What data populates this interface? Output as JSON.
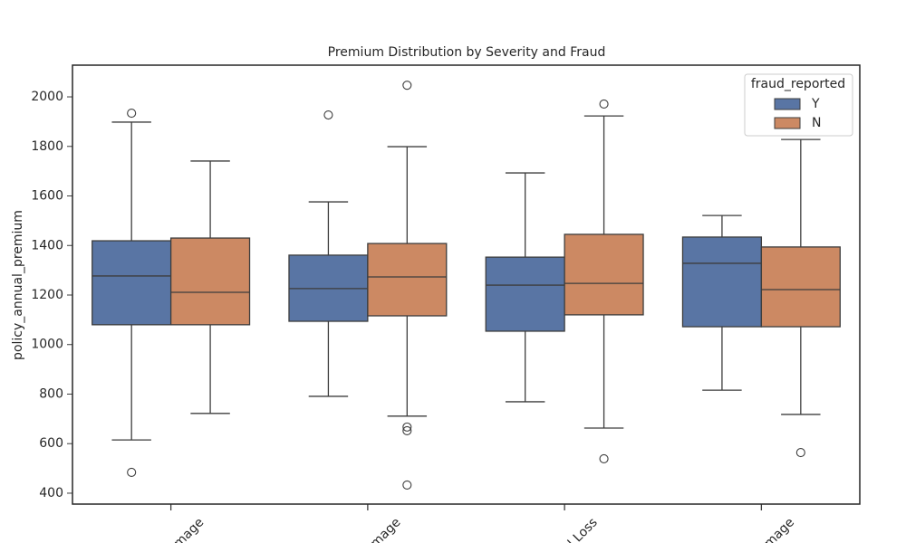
{
  "chart_data": {
    "type": "box",
    "title": "Premium Distribution by Severity and Fraud",
    "y_label": "policy_annual_premium",
    "categories": [
      "mage",
      "mage",
      "l Loss",
      "mage"
    ],
    "legend_title": "fraud_reported",
    "legend_position": "upper right",
    "ylim": [
      356,
      2128
    ],
    "yticks": [
      400,
      600,
      800,
      1000,
      1200,
      1400,
      1600,
      1800,
      2000
    ],
    "series": [
      {
        "name": "Y",
        "color": "#5975a4",
        "boxes": [
          {
            "whisker_low": 615,
            "q1": 1080,
            "median": 1277,
            "q3": 1419,
            "whisker_high": 1898,
            "outliers": [
              1934,
              484
            ]
          },
          {
            "whisker_low": 791,
            "q1": 1094,
            "median": 1226,
            "q3": 1361,
            "whisker_high": 1576,
            "outliers": [
              1927
            ]
          },
          {
            "whisker_low": 769,
            "q1": 1054,
            "median": 1240,
            "q3": 1353,
            "whisker_high": 1693,
            "outliers": []
          },
          {
            "whisker_low": 816,
            "q1": 1072,
            "median": 1328,
            "q3": 1434,
            "whisker_high": 1521,
            "outliers": []
          }
        ]
      },
      {
        "name": "N",
        "color": "#cc8963",
        "boxes": [
          {
            "whisker_low": 722,
            "q1": 1080,
            "median": 1211,
            "q3": 1430,
            "whisker_high": 1741,
            "outliers": []
          },
          {
            "whisker_low": 711,
            "q1": 1116,
            "median": 1273,
            "q3": 1408,
            "whisker_high": 1799,
            "outliers": [
              2047,
              667,
              652,
              433
            ]
          },
          {
            "whisker_low": 663,
            "q1": 1120,
            "median": 1247,
            "q3": 1445,
            "whisker_high": 1923,
            "outliers": [
              1971,
              539
            ]
          },
          {
            "whisker_low": 718,
            "q1": 1072,
            "median": 1222,
            "q3": 1394,
            "whisker_high": 1828,
            "outliers": [
              564
            ]
          }
        ]
      }
    ]
  }
}
